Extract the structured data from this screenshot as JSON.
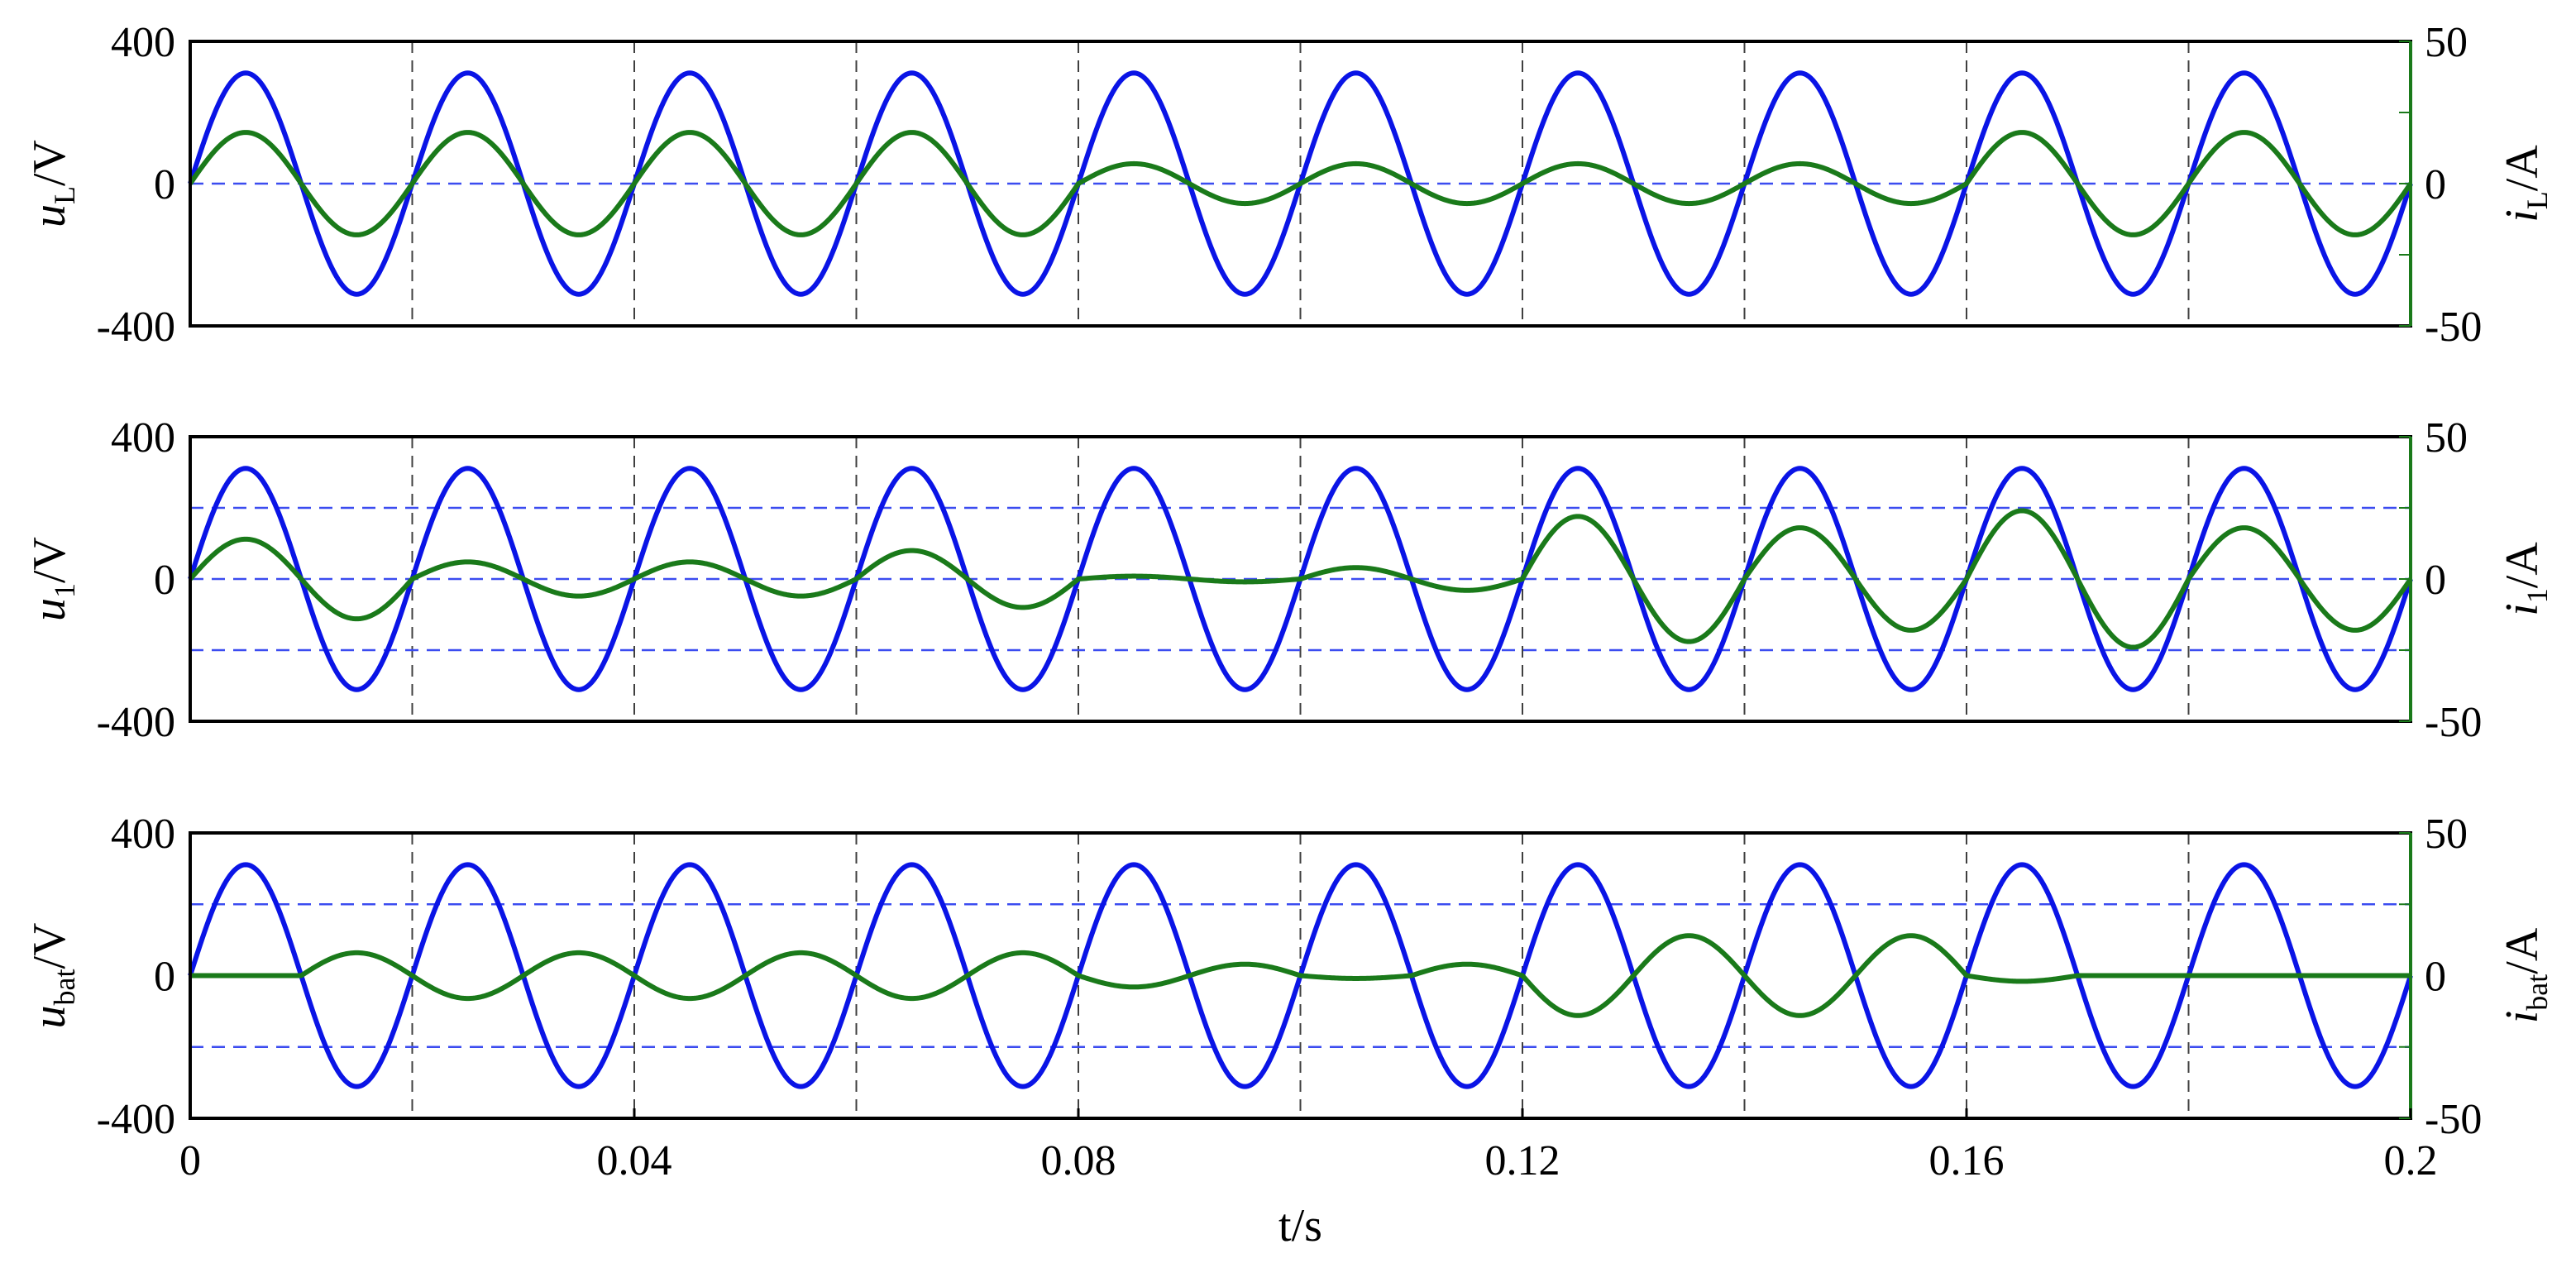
{
  "colors": {
    "voltage": "#0a14e6",
    "current": "#1a7a1a",
    "guide": "#3b4cf0",
    "grid": "#000000"
  },
  "x_axis": {
    "label": "t/s",
    "ticks": [
      0,
      0.04,
      0.08,
      0.12,
      0.16,
      0.2
    ],
    "tick_labels": [
      "0",
      "0.04",
      "0.08",
      "0.12",
      "0.16",
      "0.2"
    ],
    "range": [
      0,
      0.2
    ]
  },
  "chart_data": [
    {
      "type": "line",
      "left_axis": {
        "label_main": "u",
        "label_sub": "L",
        "label_unit": "/V",
        "range": [
          -400,
          400
        ],
        "ticks": [
          "400",
          "0",
          "-400"
        ]
      },
      "right_axis": {
        "label_main": "i",
        "label_sub": "L",
        "label_unit": "/A",
        "range": [
          -50,
          50
        ],
        "ticks": [
          "50",
          "0",
          "-50"
        ]
      },
      "dashed_guides_left_units": [
        0
      ],
      "grid_x": true,
      "series": [
        {
          "axis": "left",
          "kind": "voltage",
          "frequency_hz": 50,
          "segments": [
            {
              "t": [
                0,
                0.2
              ],
              "amplitude": 311,
              "phase_deg": 0
            }
          ]
        },
        {
          "axis": "right",
          "kind": "current",
          "frequency_hz": 50,
          "segments": [
            {
              "t": [
                0,
                0.08
              ],
              "amplitude": 18,
              "phase_deg": 0
            },
            {
              "t": [
                0.08,
                0.16
              ],
              "amplitude": 7,
              "phase_deg": 0
            },
            {
              "t": [
                0.16,
                0.2
              ],
              "amplitude": 18,
              "phase_deg": 0
            }
          ]
        }
      ]
    },
    {
      "type": "line",
      "left_axis": {
        "label_main": "u",
        "label_sub": "1",
        "label_unit": "/V",
        "range": [
          -400,
          400
        ],
        "ticks": [
          "400",
          "0",
          "-400"
        ]
      },
      "right_axis": {
        "label_main": "i",
        "label_sub": "1",
        "label_unit": "/A",
        "range": [
          -50,
          50
        ],
        "ticks": [
          "50",
          "0",
          "-50"
        ]
      },
      "dashed_guides_left_units": [
        200,
        0,
        -200
      ],
      "grid_x": true,
      "series": [
        {
          "axis": "left",
          "kind": "voltage",
          "frequency_hz": 50,
          "segments": [
            {
              "t": [
                0,
                0.2
              ],
              "amplitude": 311,
              "phase_deg": 0
            }
          ]
        },
        {
          "axis": "right",
          "kind": "current",
          "frequency_hz": 50,
          "segments": [
            {
              "t": [
                0,
                0.02
              ],
              "amplitude": 14,
              "phase_deg": 0
            },
            {
              "t": [
                0.02,
                0.06
              ],
              "amplitude": 6,
              "phase_deg": 0
            },
            {
              "t": [
                0.06,
                0.08
              ],
              "amplitude": 10,
              "phase_deg": 0
            },
            {
              "t": [
                0.08,
                0.1
              ],
              "amplitude": 1,
              "phase_deg": 0
            },
            {
              "t": [
                0.1,
                0.12
              ],
              "amplitude": 4,
              "phase_deg": 0
            },
            {
              "t": [
                0.12,
                0.14
              ],
              "amplitude": 22,
              "phase_deg": 0
            },
            {
              "t": [
                0.14,
                0.16
              ],
              "amplitude": 18,
              "phase_deg": 0
            },
            {
              "t": [
                0.16,
                0.18
              ],
              "amplitude": 24,
              "phase_deg": 0
            },
            {
              "t": [
                0.18,
                0.2
              ],
              "amplitude": 18,
              "phase_deg": 0
            }
          ]
        }
      ]
    },
    {
      "type": "line",
      "left_axis": {
        "label_main": "u",
        "label_sub": "bat",
        "label_unit": "/V",
        "range": [
          -400,
          400
        ],
        "ticks": [
          "400",
          "0",
          "-400"
        ]
      },
      "right_axis": {
        "label_main": "i",
        "label_sub": "bat",
        "label_unit": "/A",
        "range": [
          -50,
          50
        ],
        "ticks": [
          "50",
          "0",
          "-50"
        ]
      },
      "dashed_guides_left_units": [
        200,
        -200
      ],
      "grid_x": true,
      "series": [
        {
          "axis": "left",
          "kind": "voltage",
          "frequency_hz": 50,
          "segments": [
            {
              "t": [
                0,
                0.2
              ],
              "amplitude": 311,
              "phase_deg": 0
            }
          ]
        },
        {
          "axis": "right",
          "kind": "current",
          "frequency_hz": 50,
          "segments": [
            {
              "t": [
                0,
                0.01
              ],
              "amplitude": 0,
              "phase_deg": 0
            },
            {
              "t": [
                0.01,
                0.08
              ],
              "amplitude": -8,
              "phase_deg": 0
            },
            {
              "t": [
                0.08,
                0.1
              ],
              "amplitude": -4,
              "phase_deg": 0
            },
            {
              "t": [
                0.1,
                0.11
              ],
              "amplitude": -1,
              "phase_deg": 0
            },
            {
              "t": [
                0.11,
                0.12
              ],
              "amplitude": -4,
              "phase_deg": 0
            },
            {
              "t": [
                0.12,
                0.16
              ],
              "amplitude": -14,
              "phase_deg": 0
            },
            {
              "t": [
                0.16,
                0.17
              ],
              "amplitude": -2,
              "phase_deg": 0
            },
            {
              "t": [
                0.17,
                0.2
              ],
              "amplitude": 0,
              "phase_deg": 0
            }
          ]
        }
      ]
    }
  ]
}
